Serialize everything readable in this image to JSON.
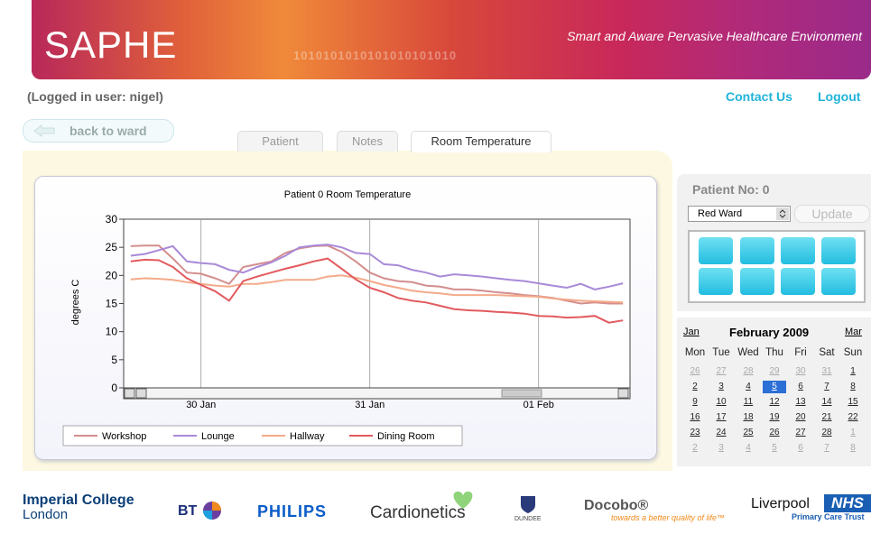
{
  "header": {
    "logo": "SAPHE",
    "tagline": "Smart and Aware Pervasive Healthcare Environment",
    "pattern": "1010101010101010101010"
  },
  "user_bar": {
    "logged_in": "(Logged in user: nigel)",
    "links": [
      "Contact Us",
      "Logout"
    ]
  },
  "back_button": "back to ward",
  "tabs": [
    "Patient",
    "Notes",
    "Room Temperature"
  ],
  "chart_data": {
    "type": "line",
    "title": "Patient 0 Room Temperature",
    "y_label": "degrees C",
    "categories": [
      null,
      null,
      null,
      null,
      null,
      "30 Jan",
      null,
      null,
      null,
      null,
      null,
      null,
      null,
      null,
      null,
      null,
      null,
      "31 Jan",
      null,
      null,
      null,
      null,
      null,
      null,
      null,
      null,
      null,
      null,
      null,
      "01 Feb",
      null,
      null,
      null,
      null,
      null,
      null
    ],
    "series": [
      {
        "name": "Workshop",
        "color": "#d48e8e",
        "values": [
          25.2,
          25.3,
          25.3,
          23,
          20.5,
          20.3,
          19.5,
          18.5,
          21.5,
          22,
          22.5,
          24,
          24.8,
          25.2,
          25.3,
          24.2,
          22.5,
          20.5,
          19.5,
          19,
          18.8,
          18.2,
          18,
          17.5,
          17.5,
          17.3,
          17,
          16.8,
          16.5,
          16.3,
          16,
          15.5,
          15,
          15.2,
          15,
          15
        ]
      },
      {
        "name": "Lounge",
        "color": "#a98ad8",
        "values": [
          23.5,
          23.8,
          24.5,
          25.2,
          22.5,
          22.2,
          22,
          21,
          20.5,
          21.5,
          22.3,
          23.5,
          25,
          25.3,
          25.5,
          25,
          24,
          23.8,
          22,
          21.8,
          21,
          20.5,
          19.8,
          20.2,
          20,
          19.8,
          19.5,
          19.2,
          19,
          18.6,
          18.2,
          17.8,
          18.5,
          17.5,
          18,
          18.6
        ]
      },
      {
        "name": "Hallway",
        "color": "#f3aa8a",
        "values": [
          19.3,
          19.5,
          19.4,
          19.2,
          18.8,
          18.5,
          18.2,
          18,
          18.5,
          18.5,
          18.8,
          19.2,
          19.2,
          19.2,
          19.8,
          20,
          19.6,
          19,
          18.3,
          17.8,
          17.3,
          17,
          16.8,
          16.5,
          16.5,
          16.5,
          16.5,
          16.4,
          16.3,
          16.2,
          15.9,
          15.7,
          15.5,
          15.4,
          15.3,
          15.2
        ]
      },
      {
        "name": "Dining Room",
        "color": "#e25a5e",
        "values": [
          22.5,
          22.8,
          22.7,
          21.5,
          19.5,
          18.3,
          17.2,
          15.5,
          19,
          19.8,
          20.5,
          21.2,
          21.8,
          22.5,
          23,
          21.2,
          19.3,
          17.8,
          17,
          16,
          15.5,
          15.2,
          14.6,
          14,
          13.8,
          13.7,
          13.5,
          13.4,
          13.2,
          12.8,
          12.7,
          12.5,
          12.6,
          12.8,
          11.6,
          12
        ]
      }
    ],
    "ylim": [
      0,
      30
    ],
    "yticks": [
      0,
      5,
      10,
      15,
      20,
      25,
      30
    ],
    "grid": "x",
    "legend": "bottom"
  },
  "sidebar": {
    "patient_label": "Patient No: 0",
    "ward": "Red Ward",
    "update": "Update"
  },
  "calendar": {
    "prev": "Jan",
    "title": "February 2009",
    "next": "Mar",
    "weekdays": [
      "Mon",
      "Tue",
      "Wed",
      "Thu",
      "Fri",
      "Sat",
      "Sun"
    ],
    "weeks": [
      [
        26,
        27,
        28,
        29,
        30,
        31,
        1
      ],
      [
        2,
        3,
        4,
        5,
        6,
        7,
        8
      ],
      [
        9,
        10,
        11,
        12,
        13,
        14,
        15
      ],
      [
        16,
        17,
        18,
        19,
        20,
        21,
        22
      ],
      [
        23,
        24,
        25,
        26,
        27,
        28,
        1
      ],
      [
        2,
        3,
        4,
        5,
        6,
        7,
        8
      ]
    ]
  },
  "footer": {
    "imperial": [
      "Imperial College",
      "London"
    ],
    "bt": "BT",
    "philips": "PHILIPS",
    "cardionetics": "Cardionetics",
    "dundee": "DUNDEE",
    "docobo": "Docobo®",
    "docobo_tagline": "towards a better quality of life™",
    "liverpool": "Liverpool",
    "nhs": "NHS",
    "pct": "Primary Care Trust"
  }
}
